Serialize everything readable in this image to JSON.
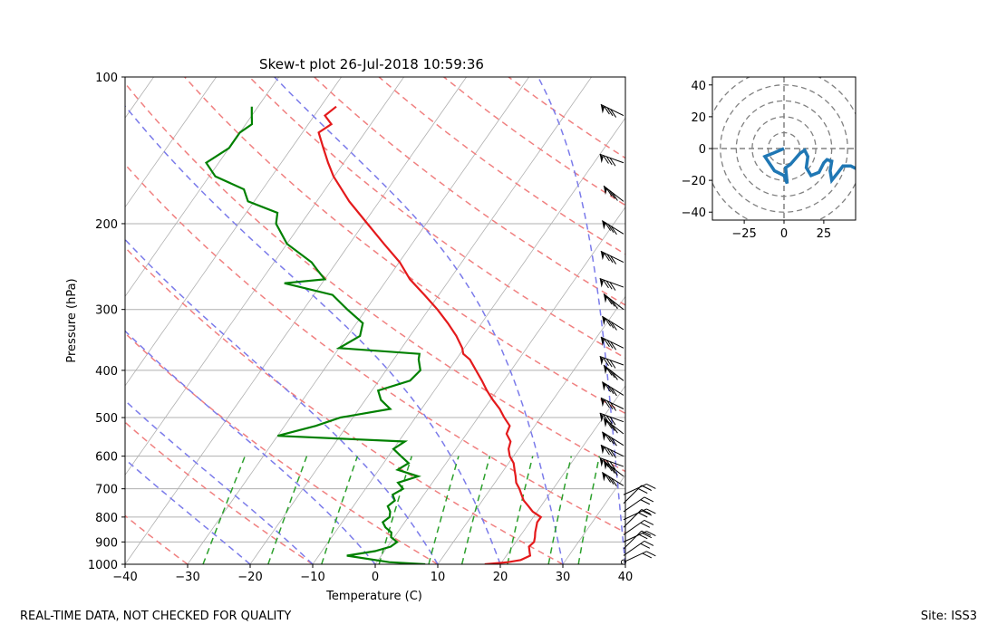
{
  "footer": {
    "left": "REAL-TIME DATA, NOT CHECKED FOR QUALITY",
    "right": "Site: ISS3"
  },
  "colors": {
    "temperature": "#e41a1c",
    "dewpoint": "#008000",
    "dry_adiabat": "#f08080",
    "moist_adiabat": "#7b7bea",
    "mixing_ratio": "#2ca02c",
    "isotherm": "#b0b0b0",
    "hodograph": "#1f77b4",
    "barb": "#000000"
  },
  "chart_data": [
    {
      "type": "line",
      "title": "Skew-t plot 26-Jul-2018 10:59:36",
      "xlabel": "Temperature (C)",
      "ylabel": "Pressure (hPa)",
      "xlim": [
        -40,
        40
      ],
      "ylim": [
        1000,
        100
      ],
      "yscale": "log",
      "x_ticks": [
        -40,
        -30,
        -20,
        -10,
        0,
        10,
        20,
        30,
        40
      ],
      "y_ticks": [
        100,
        200,
        300,
        400,
        500,
        600,
        700,
        800,
        900,
        1000
      ],
      "grid": true,
      "series": [
        {
          "name": "temperature",
          "points": [
            [
              1000,
              17.5
            ],
            [
              990,
              21
            ],
            [
              980,
              22.8
            ],
            [
              960,
              23.8
            ],
            [
              940,
              23.2
            ],
            [
              920,
              22.6
            ],
            [
              900,
              22.9
            ],
            [
              880,
              22.5
            ],
            [
              860,
              22.0
            ],
            [
              840,
              21.6
            ],
            [
              820,
              21.2
            ],
            [
              800,
              21.2
            ],
            [
              780,
              19.3
            ],
            [
              760,
              18.0
            ],
            [
              740,
              16.6
            ],
            [
              720,
              15.6
            ],
            [
              700,
              14.6
            ],
            [
              680,
              13.4
            ],
            [
              660,
              12.6
            ],
            [
              640,
              11.7
            ],
            [
              620,
              10.8
            ],
            [
              600,
              9.4
            ],
            [
              580,
              8.4
            ],
            [
              560,
              7.9
            ],
            [
              540,
              6.4
            ],
            [
              520,
              6.0
            ],
            [
              500,
              4.2
            ],
            [
              480,
              2.5
            ],
            [
              460,
              0.4
            ],
            [
              440,
              -1.6
            ],
            [
              420,
              -3.5
            ],
            [
              400,
              -5.6
            ],
            [
              380,
              -7.8
            ],
            [
              370,
              -9.5
            ],
            [
              360,
              -10.3
            ],
            [
              340,
              -12.6
            ],
            [
              320,
              -15.4
            ],
            [
              300,
              -18.6
            ],
            [
              280,
              -22.3
            ],
            [
              260,
              -26.4
            ],
            [
              240,
              -29.9
            ],
            [
              220,
              -34.5
            ],
            [
              200,
              -39.4
            ],
            [
              180,
              -44.8
            ],
            [
              160,
              -50.1
            ],
            [
              150,
              -52.5
            ],
            [
              140,
              -54.9
            ],
            [
              130,
              -57.4
            ],
            [
              125,
              -56.3
            ],
            [
              120,
              -58.3
            ],
            [
              115,
              -57.5
            ]
          ]
        },
        {
          "name": "dewpoint",
          "points": [
            [
              1000,
              8.0
            ],
            [
              990,
              2.0
            ],
            [
              960,
              -5.5
            ],
            [
              940,
              -1.5
            ],
            [
              920,
              0.5
            ],
            [
              900,
              1.0
            ],
            [
              880,
              -0.5
            ],
            [
              860,
              -1.0
            ],
            [
              840,
              -2.5
            ],
            [
              820,
              -3.5
            ],
            [
              800,
              -3.0
            ],
            [
              780,
              -3.5
            ],
            [
              760,
              -4.5
            ],
            [
              740,
              -4.0
            ],
            [
              720,
              -5.0
            ],
            [
              700,
              -4.0
            ],
            [
              680,
              -5.5
            ],
            [
              660,
              -3.0
            ],
            [
              640,
              -7.0
            ],
            [
              620,
              -6.0
            ],
            [
              600,
              -8.0
            ],
            [
              580,
              -10.0
            ],
            [
              560,
              -9.0
            ],
            [
              545,
              -30.0
            ],
            [
              520,
              -25.0
            ],
            [
              500,
              -22.0
            ],
            [
              480,
              -15.0
            ],
            [
              460,
              -17.5
            ],
            [
              440,
              -19.0
            ],
            [
              420,
              -15.0
            ],
            [
              400,
              -14.5
            ],
            [
              380,
              -16.0
            ],
            [
              370,
              -16.5
            ],
            [
              360,
              -30.0
            ],
            [
              340,
              -28.0
            ],
            [
              320,
              -29.0
            ],
            [
              300,
              -33.0
            ],
            [
              280,
              -37.0
            ],
            [
              265,
              -46.0
            ],
            [
              260,
              -40.0
            ],
            [
              250,
              -42.0
            ],
            [
              240,
              -44.0
            ],
            [
              220,
              -50.0
            ],
            [
              200,
              -54.0
            ],
            [
              190,
              -55.0
            ],
            [
              180,
              -61.0
            ],
            [
              170,
              -63.0
            ],
            [
              160,
              -69.0
            ],
            [
              150,
              -72.0
            ],
            [
              140,
              -70.0
            ],
            [
              130,
              -70.0
            ],
            [
              125,
              -69.0
            ],
            [
              120,
              -70.0
            ],
            [
              115,
              -71.0
            ]
          ]
        }
      ]
    },
    {
      "type": "line",
      "title": "",
      "xlim": [
        -45,
        45
      ],
      "ylim": [
        -45,
        45
      ],
      "x_ticks": [
        -25,
        0,
        25
      ],
      "y_ticks": [
        -40,
        -20,
        0,
        20,
        40
      ],
      "rings": [
        10,
        20,
        30,
        40,
        50
      ],
      "series": [
        {
          "name": "",
          "points": [
            [
              0,
              0
            ],
            [
              -7,
              -3
            ],
            [
              -12,
              -5
            ],
            [
              -6,
              -14
            ],
            [
              0,
              -17
            ],
            [
              2,
              -22
            ],
            [
              1,
              -12
            ],
            [
              4,
              -10
            ],
            [
              10,
              -3
            ],
            [
              13,
              -1
            ],
            [
              15,
              -5
            ],
            [
              14,
              -12
            ],
            [
              17,
              -17
            ],
            [
              22,
              -15
            ],
            [
              25,
              -9
            ],
            [
              27,
              -7
            ],
            [
              30,
              -8
            ],
            [
              29,
              -14
            ],
            [
              30,
              -20
            ],
            [
              34,
              -15
            ],
            [
              37,
              -11
            ],
            [
              42,
              -11
            ],
            [
              46,
              -13
            ]
          ]
        }
      ]
    }
  ]
}
